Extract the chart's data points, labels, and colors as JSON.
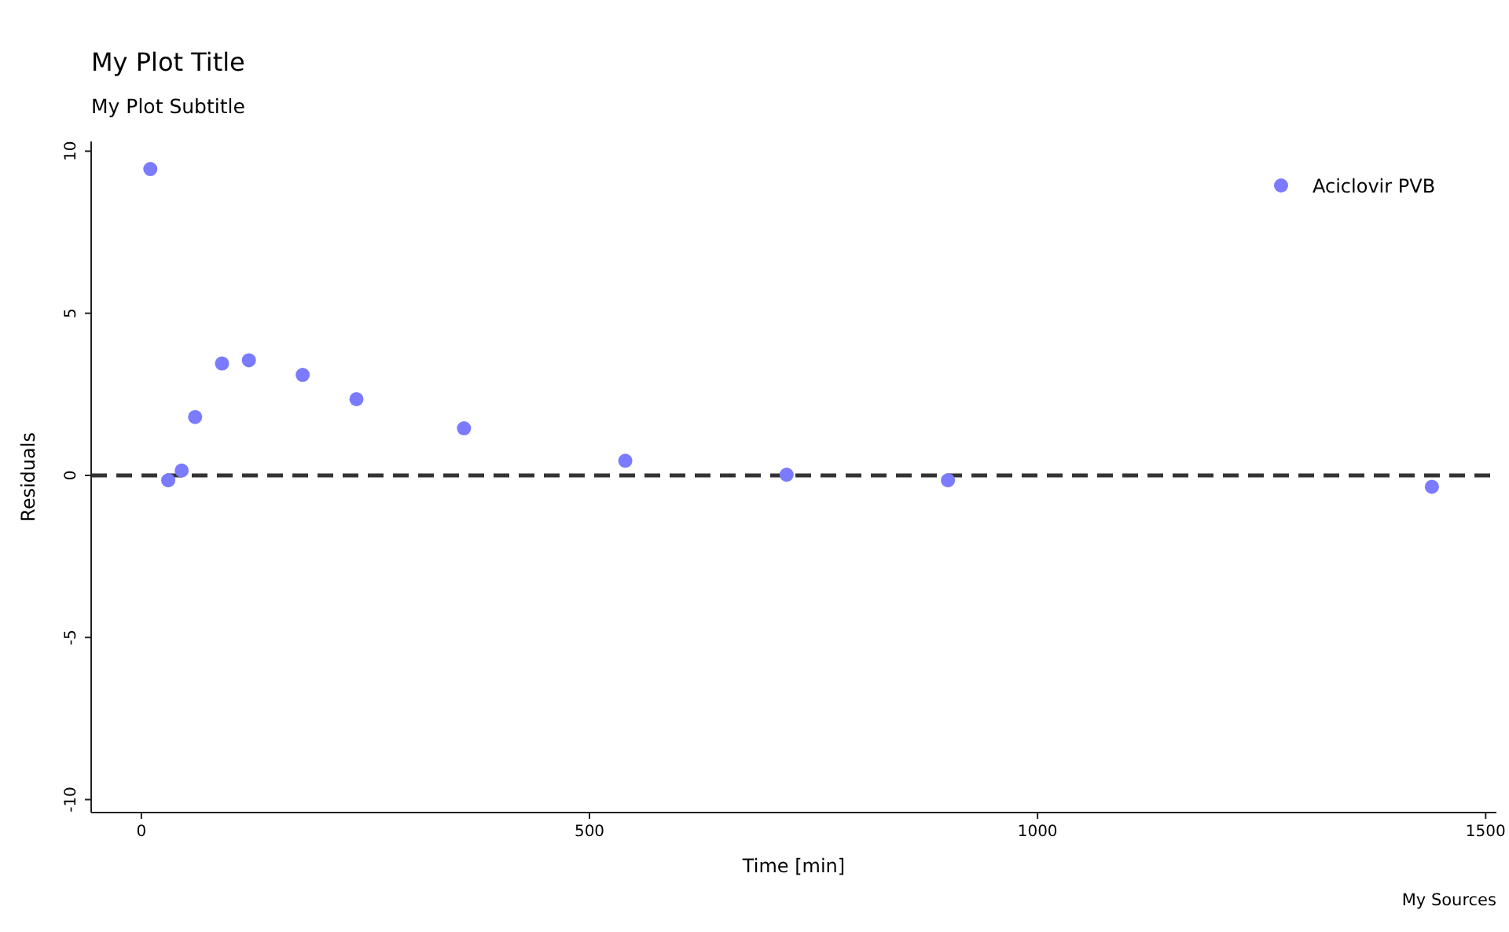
{
  "chart_data": {
    "type": "scatter",
    "title": "My Plot Title",
    "subtitle": "My Plot Subtitle",
    "xlabel": "Time [min]",
    "ylabel": "Residuals",
    "annotations": [
      "My Sources"
    ],
    "x": [
      10,
      30,
      45,
      60,
      90,
      120,
      180,
      240,
      360,
      540,
      720,
      900,
      1440
    ],
    "series": [
      {
        "name": "Aciclovir PVB",
        "color": "#7b7bff",
        "values": [
          9.45,
          -0.15,
          0.15,
          1.8,
          3.45,
          3.55,
          3.1,
          2.35,
          1.45,
          0.45,
          0.02,
          -0.15,
          -0.35
        ]
      }
    ],
    "xlim": [
      -56,
      1512
    ],
    "xticks": [
      0,
      500,
      1000,
      1500
    ],
    "ylim": [
      -10.4,
      10.3
    ],
    "yticks": [
      -10,
      -5,
      0,
      5,
      10
    ],
    "ref_lines": [
      {
        "axis": "y",
        "value": 0,
        "color": "#333333",
        "line_style": "dashed"
      }
    ],
    "grid": false,
    "legend": "top right",
    "marker": "circle"
  }
}
